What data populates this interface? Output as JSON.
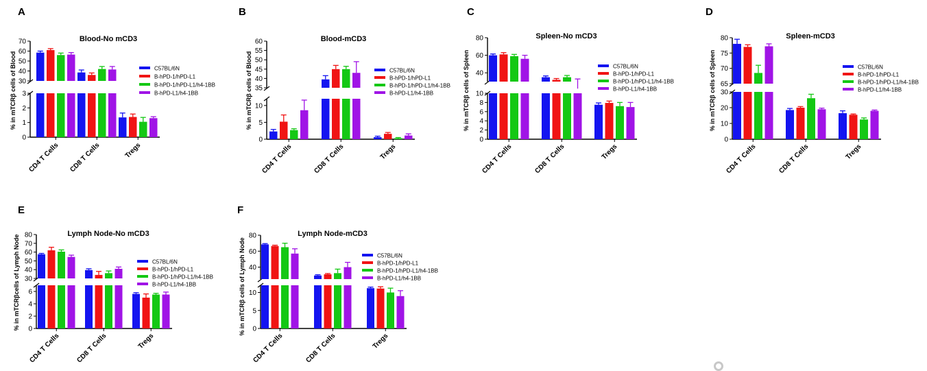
{
  "colors": [
    "#1414f0",
    "#f01414",
    "#14c814",
    "#a014e6"
  ],
  "chart_data": [
    {
      "letter": "A",
      "type": "bar",
      "title": "Blood-No mCD3",
      "ylabel": "% in mTCRβ cells of Blood",
      "categories": [
        "CD4 T Cells",
        "CD8 T Cells",
        "Tregs"
      ],
      "broken_axis": true,
      "upper_ylim": [
        30,
        70
      ],
      "upper_ticks": [
        30,
        40,
        50,
        60,
        70
      ],
      "lower_ylim": [
        0,
        3
      ],
      "lower_ticks": [
        0,
        1,
        2,
        3
      ],
      "series": [
        {
          "name": "C57BL/6N",
          "values": [
            58.5,
            38.5,
            1.35
          ],
          "errors": [
            1.5,
            2.5,
            0.3
          ]
        },
        {
          "name": "B-hPD-1/hPD-L1",
          "values": [
            61,
            36,
            1.38
          ],
          "errors": [
            1.5,
            2.0,
            0.2
          ]
        },
        {
          "name": "B-hPD-1/hPD-L1/h4-1BB",
          "values": [
            56,
            42,
            1.05
          ],
          "errors": [
            2.0,
            2.5,
            0.3
          ]
        },
        {
          "name": "B-hPD-L1/h4-1BB",
          "values": [
            56.5,
            41.5,
            1.3
          ],
          "errors": [
            2.0,
            3.0,
            0.1
          ]
        }
      ]
    },
    {
      "letter": "B",
      "type": "bar",
      "title": "Blood-mCD3",
      "ylabel": "% in mTCRβ cells of Blood",
      "categories": [
        "CD4 T Cells",
        "CD8 T Cells",
        "Tregs"
      ],
      "broken_axis": true,
      "upper_ylim": [
        35,
        60
      ],
      "upper_ticks": [
        35,
        40,
        45,
        50,
        55,
        60
      ],
      "lower_ylim": [
        0,
        12
      ],
      "lower_ticks": [
        0,
        5,
        10
      ],
      "series": [
        {
          "name": "C57BL/6N",
          "values": [
            2.3,
            39.5,
            0.6
          ],
          "errors": [
            0.6,
            2.0,
            0.3
          ]
        },
        {
          "name": "B-hPD-1/hPD-L1",
          "values": [
            5.2,
            45,
            1.6
          ],
          "errors": [
            2.0,
            2.0,
            0.4
          ]
        },
        {
          "name": "B-hPD-1/hPD-L1/h4-1BB",
          "values": [
            2.7,
            45,
            0.3
          ],
          "errors": [
            0.4,
            1.5,
            0.2
          ]
        },
        {
          "name": "B-hPD-L1/h4-1BB",
          "values": [
            8.6,
            43,
            1.1
          ],
          "errors": [
            3.0,
            6.0,
            0.5
          ]
        }
      ]
    },
    {
      "letter": "C",
      "type": "bar",
      "title": "Spleen-No mCD3",
      "ylabel": "% in mTCRβ cells of Spleen",
      "categories": [
        "CD4 T Cells",
        "CD8 T Cells",
        "Tregs"
      ],
      "broken_axis": true,
      "upper_ylim": [
        30,
        80
      ],
      "upper_ticks": [
        40,
        60,
        80
      ],
      "lower_ylim": [
        0,
        10
      ],
      "lower_ticks": [
        0,
        2,
        4,
        6,
        8,
        10
      ],
      "series": [
        {
          "name": "C57BL/6N",
          "values": [
            60,
            35,
            7.5
          ],
          "errors": [
            1.5,
            1.5,
            0.4
          ]
        },
        {
          "name": "B-hPD-1/hPD-L1",
          "values": [
            61,
            32,
            7.9
          ],
          "errors": [
            2.0,
            1.5,
            0.4
          ]
        },
        {
          "name": "B-hPD-1/hPD-L1/h4-1BB",
          "values": [
            59,
            35,
            7.2
          ],
          "errors": [
            2.0,
            2.0,
            0.8
          ]
        },
        {
          "name": "B-hPD-L1/h4-1BB",
          "values": [
            56,
            22,
            7.0
          ],
          "errors": [
            4.0,
            11.0,
            1.0
          ]
        }
      ]
    },
    {
      "letter": "D",
      "type": "bar",
      "title": "Spleen-mCD3",
      "ylabel": "% in mTCRβ cells of Spleen",
      "categories": [
        "CD4 T Cells",
        "CD8 T Cells",
        "Tregs"
      ],
      "broken_axis": true,
      "upper_ylim": [
        65,
        80
      ],
      "upper_ticks": [
        65,
        70,
        75,
        80
      ],
      "lower_ylim": [
        0,
        30
      ],
      "lower_ticks": [
        0,
        10,
        20,
        30
      ],
      "series": [
        {
          "name": "C57BL/6N",
          "values": [
            78,
            18.5,
            16.5
          ],
          "errors": [
            1.5,
            1.0,
            1.5
          ]
        },
        {
          "name": "B-hPD-1/hPD-L1",
          "values": [
            77,
            20,
            15.5
          ],
          "errors": [
            0.7,
            0.7,
            0.5
          ]
        },
        {
          "name": "B-hPD-1/hPD-L1/h4-1BB",
          "values": [
            68.5,
            26,
            12.5
          ],
          "errors": [
            2.5,
            2.5,
            1.0
          ]
        },
        {
          "name": "B-hPD-L1/h4-1BB",
          "values": [
            77.2,
            19,
            18
          ],
          "errors": [
            0.8,
            0.7,
            0.5
          ]
        }
      ]
    },
    {
      "letter": "E",
      "type": "bar",
      "title": "Lymph Node-No mCD3",
      "ylabel": "% in mTCRβcells of Lymph Node",
      "categories": [
        "CD4 T Cells",
        "CD8 T Cells",
        "Tregs"
      ],
      "broken_axis": true,
      "upper_ylim": [
        30,
        80
      ],
      "upper_ticks": [
        30,
        40,
        50,
        60,
        70,
        80
      ],
      "lower_ylim": [
        0,
        7
      ],
      "lower_ticks": [
        0,
        2,
        4,
        6
      ],
      "series": [
        {
          "name": "C57BL/6N",
          "values": [
            57.5,
            39.5,
            5.6
          ],
          "errors": [
            1.0,
            1.5,
            0.2
          ]
        },
        {
          "name": "B-hPD-1/hPD-L1",
          "values": [
            62,
            34,
            5.0
          ],
          "errors": [
            3.5,
            4.0,
            0.6
          ]
        },
        {
          "name": "B-hPD-1/hPD-L1/h4-1BB",
          "values": [
            60.5,
            36,
            5.5
          ],
          "errors": [
            2.0,
            2.5,
            0.2
          ]
        },
        {
          "name": "B-hPD-L1/h4-1BB",
          "values": [
            54.5,
            41,
            5.5
          ],
          "errors": [
            2.0,
            2.0,
            0.4
          ]
        }
      ]
    },
    {
      "letter": "F",
      "type": "bar",
      "title": "Lymph Node-mCD3",
      "ylabel": "% in mTCRβ cells of Lymph Node",
      "categories": [
        "CD4 T Cells",
        "CD8 T Cells",
        "Tregs"
      ],
      "broken_axis": true,
      "upper_ylim": [
        25,
        80
      ],
      "upper_ticks": [
        40,
        60,
        80
      ],
      "lower_ylim": [
        0,
        12
      ],
      "lower_ticks": [
        0,
        5,
        10
      ],
      "series": [
        {
          "name": "C57BL/6N",
          "values": [
            68.5,
            29.5,
            11.2
          ],
          "errors": [
            1.0,
            1.0,
            0.3
          ]
        },
        {
          "name": "B-hPD-1/hPD-L1",
          "values": [
            66.5,
            31,
            11.1
          ],
          "errors": [
            1.0,
            1.0,
            0.5
          ]
        },
        {
          "name": "B-hPD-1/hPD-L1/h4-1BB",
          "values": [
            65,
            32.5,
            10.0
          ],
          "errors": [
            5.0,
            5.0,
            1.2
          ]
        },
        {
          "name": "B-hPD-L1/h4-1BB",
          "values": [
            57,
            40,
            9.0
          ],
          "errors": [
            6.0,
            6.0,
            1.5
          ]
        }
      ]
    }
  ]
}
